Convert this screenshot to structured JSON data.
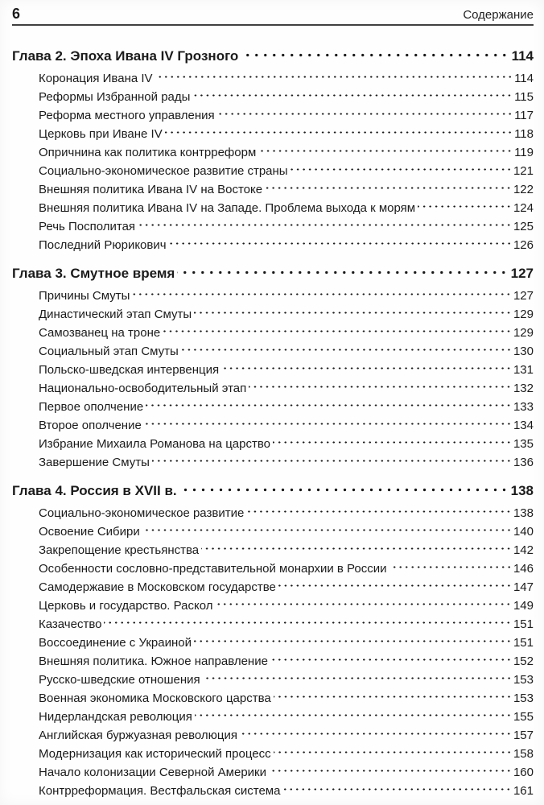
{
  "header": {
    "page_number": "6",
    "title": "Содержание"
  },
  "toc": {
    "chapters": [
      {
        "title": "Глава 2. Эпоха Ивана IV Грозного",
        "page": "114",
        "entries": [
          {
            "title": "Коронация Ивана IV",
            "page": "114"
          },
          {
            "title": "Реформы Избранной рады",
            "page": "115"
          },
          {
            "title": "Реформа местного управления",
            "page": "117"
          },
          {
            "title": "Церковь при Иване IV",
            "page": "118"
          },
          {
            "title": "Опричнина как политика контрреформ",
            "page": "119"
          },
          {
            "title": "Социально-экономическое развитие страны",
            "page": "121"
          },
          {
            "title": "Внешняя политика Ивана IV на Востоке",
            "page": "122"
          },
          {
            "title": "Внешняя политика Ивана IV на Западе. Проблема выхода к морям",
            "page": "124"
          },
          {
            "title": "Речь Посполитая",
            "page": "125"
          },
          {
            "title": "Последний Рюрикович",
            "page": "126"
          }
        ]
      },
      {
        "title": "Глава 3. Смутное время",
        "page": "127",
        "entries": [
          {
            "title": "Причины Смуты",
            "page": "127"
          },
          {
            "title": "Династический этап Смуты",
            "page": "129"
          },
          {
            "title": "Самозванец на троне",
            "page": "129"
          },
          {
            "title": "Социальный этап Смуты",
            "page": "130"
          },
          {
            "title": "Польско-шведская интервенция",
            "page": "131"
          },
          {
            "title": "Национально-освободительный этап",
            "page": "132"
          },
          {
            "title": "Первое ополчение",
            "page": "133"
          },
          {
            "title": "Второе ополчение",
            "page": "134"
          },
          {
            "title": "Избрание Михаила Романова на царство",
            "page": "135"
          },
          {
            "title": "Завершение Смуты",
            "page": "136"
          }
        ]
      },
      {
        "title": "Глава 4. Россия в XVII в.",
        "page": "138",
        "entries": [
          {
            "title": "Социально-экономическое развитие",
            "page": "138"
          },
          {
            "title": "Освоение Сибири",
            "page": "140"
          },
          {
            "title": "Закрепощение крестьянства",
            "page": "142"
          },
          {
            "title": "Особенности сословно-представительной монархии в России",
            "page": "146"
          },
          {
            "title": "Самодержавие в Московском государстве",
            "page": "147"
          },
          {
            "title": "Церковь и государство. Раскол",
            "page": "149"
          },
          {
            "title": "Казачество",
            "page": "151"
          },
          {
            "title": "Воссоединение с Украиной",
            "page": "151"
          },
          {
            "title": "Внешняя политика. Южное направление",
            "page": "152"
          },
          {
            "title": "Русско-шведские отношения",
            "page": "153"
          },
          {
            "title": "Военная экономика Московского царства",
            "page": "153"
          },
          {
            "title": "Нидерландская революция",
            "page": "155"
          },
          {
            "title": "Английская буржуазная революция",
            "page": "157"
          },
          {
            "title": "Модернизация как исторический процесс",
            "page": "158"
          },
          {
            "title": "Начало колонизации Северной Америки",
            "page": "160"
          },
          {
            "title": "Контрреформация. Вестфальская система",
            "page": "161"
          }
        ]
      }
    ]
  }
}
